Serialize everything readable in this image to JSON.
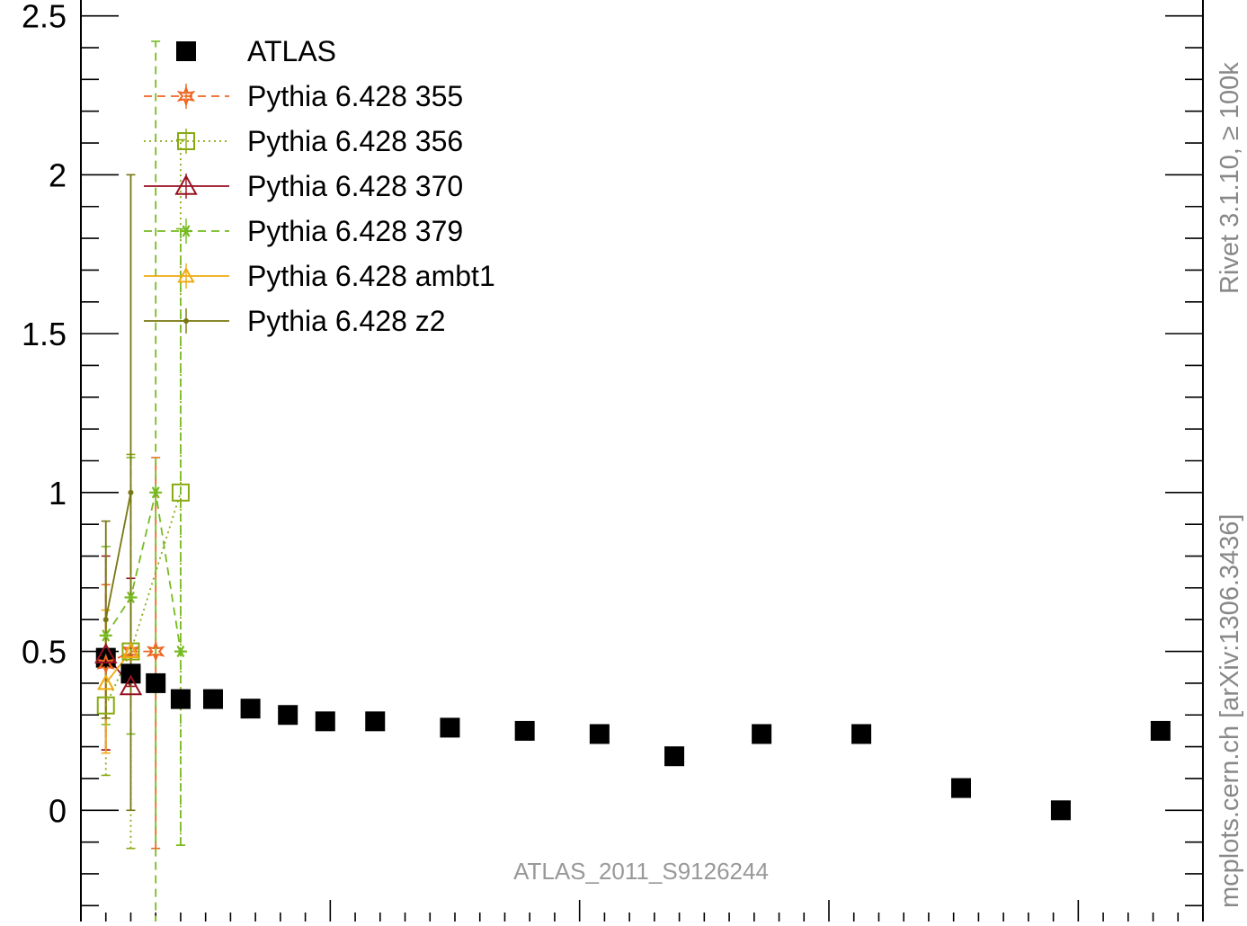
{
  "chart_data": {
    "type": "scatter",
    "title": "",
    "xlabel": "",
    "ylabel": "",
    "xlim": [
      0,
      45
    ],
    "ylim": [
      -0.35,
      2.55
    ],
    "y_ticks": [
      0,
      0.5,
      1,
      1.5,
      2,
      2.5
    ],
    "y_tick_labels": [
      "0",
      "0.5",
      "1",
      "1.5",
      "2",
      "2.5"
    ],
    "grid": false,
    "legend_position": "top-left",
    "watermark": "ATLAS_2011_S9126244",
    "side_labels": [
      "mcplots.cern.ch [arXiv:1306.3436]",
      "Rivet 3.1.10, ≥ 100k"
    ],
    "series": [
      {
        "name": "ATLAS",
        "color": "#000000",
        "marker": "filled-square",
        "line": "none",
        "x": [
          1.0,
          2.0,
          3.0,
          4.0,
          5.3,
          6.8,
          8.3,
          9.8,
          11.8,
          14.8,
          17.8,
          20.8,
          23.8,
          27.3,
          31.3,
          35.3,
          39.3,
          43.3
        ],
        "y": [
          0.48,
          0.43,
          0.4,
          0.35,
          0.35,
          0.32,
          0.3,
          0.28,
          0.28,
          0.26,
          0.25,
          0.24,
          0.17,
          0.24,
          0.24,
          0.07,
          0.0,
          0.25
        ]
      },
      {
        "name": "Pythia 6.428 355",
        "color": "#ee6622",
        "marker": "star-open",
        "line": "dashed",
        "x": [
          1.0,
          2.0,
          3.0
        ],
        "y": [
          0.46,
          0.5,
          0.5
        ],
        "err_low": [
          0.27,
          0.0,
          0.62
        ],
        "err_high": [
          0.25,
          0.0,
          0.61
        ]
      },
      {
        "name": "Pythia 6.428 356",
        "color": "#88aa11",
        "marker": "square-open",
        "line": "dotted",
        "x": [
          1.0,
          2.0,
          4.0
        ],
        "y": [
          0.33,
          0.5,
          1.0
        ],
        "err_low": [
          0.22,
          0.62,
          1.11
        ],
        "err_high": [
          0.22,
          0.62,
          1.11
        ]
      },
      {
        "name": "Pythia 6.428 370",
        "color": "#991122",
        "marker": "triangle-open",
        "line": "solid",
        "x": [
          1.0,
          2.0
        ],
        "y": [
          0.49,
          0.39
        ],
        "err_low": [
          0.3,
          0.0
        ],
        "err_high": [
          0.31,
          0.34
        ]
      },
      {
        "name": "Pythia 6.428 379",
        "color": "#77bb22",
        "marker": "asterisk",
        "line": "dashed",
        "x": [
          1.0,
          2.0,
          3.0,
          4.0
        ],
        "y": [
          0.55,
          0.67,
          1.0,
          0.5
        ],
        "err_low": [
          0.28,
          0.43,
          1.4,
          0.61
        ],
        "err_high": [
          0.28,
          0.44,
          1.42,
          1.33
        ]
      },
      {
        "name": "Pythia 6.428 ambt1",
        "color": "#eeaa11",
        "marker": "triangle-open-small",
        "line": "solid",
        "x": [
          1.0,
          2.0
        ],
        "y": [
          0.4,
          0.5
        ],
        "err_low": [
          0.22,
          0.0
        ],
        "err_high": [
          0.23,
          0.0
        ]
      },
      {
        "name": "Pythia 6.428 z2",
        "color": "#777711",
        "marker": "dot",
        "line": "solid",
        "x": [
          1.0,
          2.0
        ],
        "y": [
          0.6,
          1.0
        ],
        "err_low": [
          0.31,
          1.0
        ],
        "err_high": [
          0.31,
          1.0
        ]
      }
    ]
  }
}
